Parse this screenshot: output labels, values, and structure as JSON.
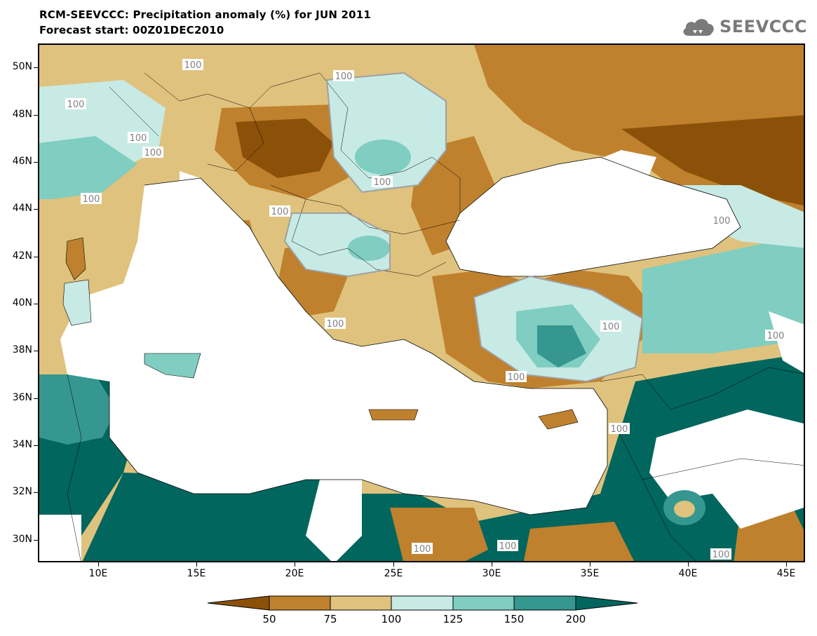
{
  "title_line1": "RCM-SEEVCCC: Precipitation anomaly (%) for JUN 2011",
  "title_line2": "Forecast start: 00Z01DEC2010",
  "logo_text": "SEEVCCC",
  "lat_labels": [
    "50N",
    "48N",
    "46N",
    "44N",
    "42N",
    "40N",
    "38N",
    "36N",
    "34N",
    "32N",
    "30N"
  ],
  "lon_labels": [
    "10E",
    "15E",
    "20E",
    "25E",
    "30E",
    "35E",
    "40E",
    "45E"
  ],
  "contour_label": "100",
  "colorbar": {
    "levels": [
      "50",
      "75",
      "100",
      "125",
      "150",
      "200"
    ],
    "colors": [
      "#8c5109",
      "#bf812d",
      "#dfc27d",
      "#c7eae5",
      "#80cdc1",
      "#35978f",
      "#01665e"
    ]
  }
}
